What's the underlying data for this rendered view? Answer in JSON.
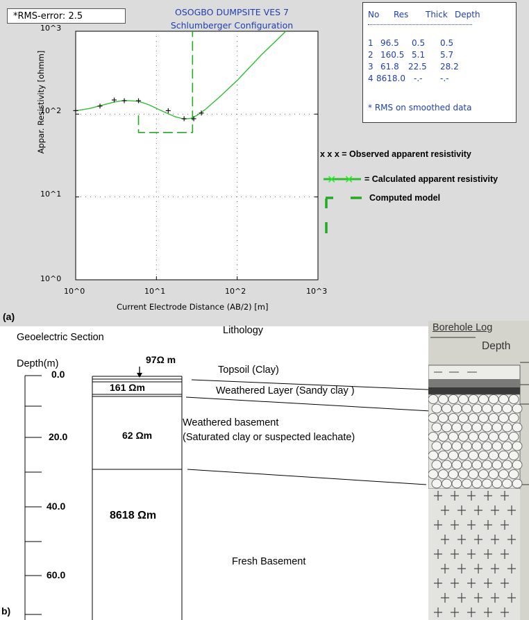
{
  "panel_a": {
    "label": "(a)",
    "rms_text": "*RMS-error:  2.5",
    "title_line1": "OSOGBO DUMPSITE VES 7",
    "title_line2": "Schlumberger Configuration",
    "ylabel": "Appar. Resistivity [ohmm]",
    "xlabel": "Current Electrode Distance (AB/2) [m]",
    "x_ticks": [
      "10^0",
      "10^1",
      "10^2",
      "10^3"
    ],
    "y_ticks": [
      "10^3",
      "10^2",
      "10^1",
      "10^0"
    ],
    "table": {
      "headers": [
        "No",
        "Res",
        "Thick",
        "Depth"
      ],
      "rows": [
        [
          "1",
          "96.5",
          "0.5",
          "0.5"
        ],
        [
          "2",
          "160.5",
          "5.1",
          "5.7"
        ],
        [
          "3",
          "61.8",
          "22.5",
          "28.2"
        ],
        [
          "4",
          "8618.0",
          "-.-",
          "-.-"
        ]
      ],
      "note": "* RMS on smoothed data"
    },
    "legend": {
      "observed": "x x x = Observed apparent resistivity",
      "calculated": "= Calculated apparent resistivity",
      "model": "Computed model"
    },
    "colors": {
      "curve": "#33bb33",
      "model": "#22aa22",
      "title": "#1f3fb0"
    }
  },
  "chart_data": {
    "type": "line",
    "title": "OSOGBO DUMPSITE VES 7",
    "subtitle": "Schlumberger Configuration",
    "xlabel": "Current Electrode Distance (AB/2) [m]",
    "ylabel": "Appar. Resistivity [ohmm]",
    "x_scale": "log",
    "y_scale": "log",
    "xlim": [
      1,
      1000
    ],
    "ylim": [
      1,
      1000
    ],
    "grid": true,
    "series": [
      {
        "name": "Observed apparent resistivity",
        "x": [
          1,
          2,
          3,
          4,
          6,
          14,
          22,
          29,
          36
        ],
        "y": [
          110,
          125,
          148,
          145,
          145,
          110,
          88,
          88,
          103
        ]
      },
      {
        "name": "Calculated apparent resistivity",
        "x": [
          1,
          1.5,
          2,
          3,
          4,
          6,
          8,
          12,
          17,
          22,
          27,
          32,
          40,
          60,
          100,
          200,
          400
        ],
        "y": [
          110,
          117,
          126,
          140,
          146,
          143,
          130,
          108,
          93,
          87,
          89,
          97,
          113,
          160,
          255,
          520,
          1000
        ]
      },
      {
        "name": "Computed model",
        "x": [
          6,
          6,
          28,
          28,
          28
        ],
        "y": [
          96.5,
          60,
          60,
          60,
          1000
        ]
      }
    ]
  },
  "panel_b": {
    "label": "b)",
    "geoelectric_title": "Geoelectric Section",
    "lithology_title": "Lithology",
    "depth_axis_title": "Depth(m)",
    "depth_labels": [
      "0.0",
      "20.0",
      "40.0",
      "60.0"
    ],
    "layers": [
      {
        "res": "97Ω m",
        "lith": "Topsoil (Clay)"
      },
      {
        "res": "161 Ωm",
        "lith": "Weathered Layer (Sandy clay )"
      },
      {
        "res": "62 Ωm",
        "lith": "Weathered basement",
        "lith2": "(Saturated clay or suspected leachate)"
      },
      {
        "res": "8618 Ωm",
        "lith": "Fresh Basement"
      }
    ],
    "borehole": {
      "title": "Borehole Log",
      "depth": "Depth"
    }
  }
}
